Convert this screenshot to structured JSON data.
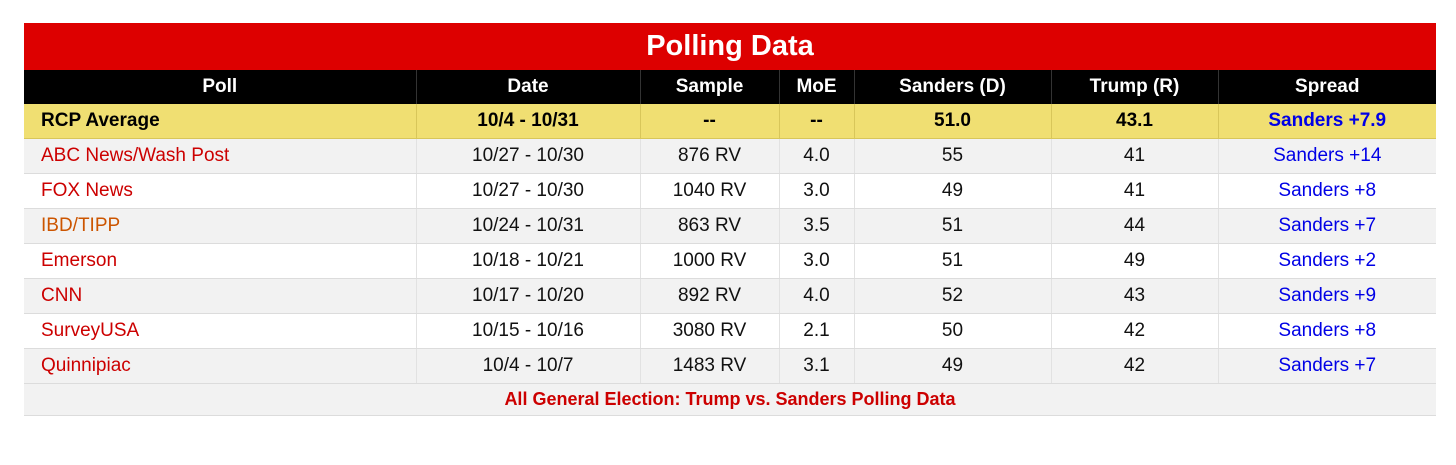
{
  "title": "Polling Data",
  "columns": [
    "Poll",
    "Date",
    "Sample",
    "MoE",
    "Sanders (D)",
    "Trump (R)",
    "Spread"
  ],
  "average": {
    "poll": "RCP Average",
    "date": "10/4 - 10/31",
    "sample": "--",
    "moe": "--",
    "sanders": "51.0",
    "trump": "43.1",
    "spread": "Sanders +7.9"
  },
  "rows": [
    {
      "poll": "ABC News/Wash Post",
      "date": "10/27 - 10/30",
      "sample": "876 RV",
      "moe": "4.0",
      "sanders": "55",
      "trump": "41",
      "spread": "Sanders +14",
      "poll_color": "#cc0000"
    },
    {
      "poll": "FOX News",
      "date": "10/27 - 10/30",
      "sample": "1040 RV",
      "moe": "3.0",
      "sanders": "49",
      "trump": "41",
      "spread": "Sanders +8",
      "poll_color": "#cc0000"
    },
    {
      "poll": "IBD/TIPP",
      "date": "10/24 - 10/31",
      "sample": "863 RV",
      "moe": "3.5",
      "sanders": "51",
      "trump": "44",
      "spread": "Sanders +7",
      "poll_color": "#cc5500"
    },
    {
      "poll": "Emerson",
      "date": "10/18 - 10/21",
      "sample": "1000 RV",
      "moe": "3.0",
      "sanders": "51",
      "trump": "49",
      "spread": "Sanders +2",
      "poll_color": "#cc0000"
    },
    {
      "poll": "CNN",
      "date": "10/17 - 10/20",
      "sample": "892 RV",
      "moe": "4.0",
      "sanders": "52",
      "trump": "43",
      "spread": "Sanders +9",
      "poll_color": "#cc0000"
    },
    {
      "poll": "SurveyUSA",
      "date": "10/15 - 10/16",
      "sample": "3080 RV",
      "moe": "2.1",
      "sanders": "50",
      "trump": "42",
      "spread": "Sanders +8",
      "poll_color": "#cc0000"
    },
    {
      "poll": "Quinnipiac",
      "date": "10/4 - 10/7",
      "sample": "1483 RV",
      "moe": "3.1",
      "sanders": "49",
      "trump": "42",
      "spread": "Sanders +7",
      "poll_color": "#cc0000"
    }
  ],
  "footer": "All General Election: Trump vs. Sanders Polling Data",
  "colors": {
    "title_bg": "#dd0000",
    "header_bg": "#000000",
    "average_bg": "#f0df72",
    "spread_text": "#0000e6",
    "link_text": "#cc0000"
  }
}
